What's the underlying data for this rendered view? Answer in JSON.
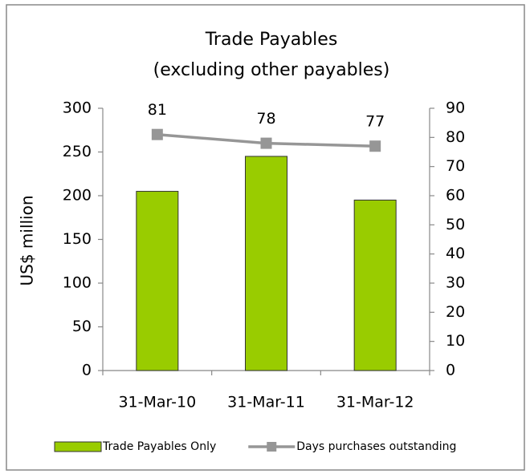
{
  "chart_data": {
    "type": "bar",
    "title": [
      "Trade Payables",
      "(excluding other payables)"
    ],
    "y_label": "US$ million",
    "categories": [
      "31-Mar-10",
      "31-Mar-11",
      "31-Mar-12"
    ],
    "series": [
      {
        "name": "Trade Payables Only",
        "type": "bar",
        "color": "#99cc00",
        "values": [
          205,
          245,
          195
        ]
      },
      {
        "name": "Days purchases outstanding",
        "type": "line",
        "color": "#969696",
        "axis": "y2",
        "values": [
          81,
          78,
          77
        ],
        "data_labels": true
      }
    ],
    "ylim": [
      0,
      300
    ],
    "yticks": [
      0,
      50,
      100,
      150,
      200,
      250,
      300
    ],
    "y2lim": [
      0,
      90
    ],
    "y2ticks": [
      0,
      10,
      20,
      30,
      40,
      50,
      60,
      70,
      80,
      90
    ],
    "legend": "bottom"
  }
}
